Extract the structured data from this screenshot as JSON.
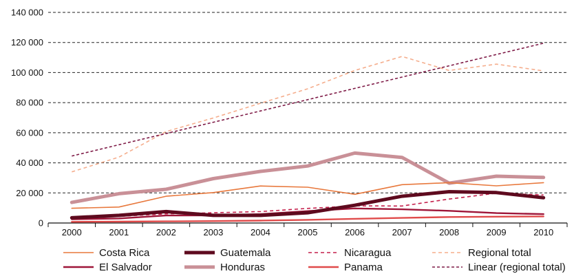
{
  "chart_data": {
    "type": "line",
    "x": [
      "2000",
      "2001",
      "2002",
      "2003",
      "2004",
      "2005",
      "2006",
      "2007",
      "2008",
      "2009",
      "2010"
    ],
    "y_ticks": [
      "0",
      "20 000",
      "40 000",
      "60 000",
      "80 000",
      "100 000",
      "120 000",
      "140 000"
    ],
    "ylim": [
      0,
      140000
    ],
    "grid": "horizontal dashed",
    "legend_position": "bottom",
    "series": [
      {
        "name": "Costa Rica",
        "color": "#e8783c",
        "style": "solid",
        "weight": "thin",
        "values": [
          9800,
          10600,
          17800,
          20200,
          24600,
          23800,
          19100,
          25500,
          26800,
          24700,
          26800
        ]
      },
      {
        "name": "Guatemala",
        "color": "#5e0a1e",
        "style": "solid",
        "weight": "thick",
        "values": [
          3500,
          5100,
          7600,
          5100,
          5100,
          6800,
          11800,
          17800,
          20800,
          20200,
          16800
        ]
      },
      {
        "name": "Nicaragua",
        "color": "#c41e4a",
        "style": "dashed",
        "weight": "thin",
        "values": [
          4100,
          4400,
          6100,
          6800,
          7600,
          9700,
          11400,
          11300,
          15900,
          19800,
          18600
        ]
      },
      {
        "name": "Regional total",
        "color": "#f5ad8c",
        "style": "dashed",
        "weight": "thin",
        "values": [
          34000,
          43800,
          60800,
          69800,
          79600,
          89200,
          101400,
          110700,
          101400,
          105600,
          101100
        ]
      },
      {
        "name": "El Salvador",
        "color": "#9e1538",
        "style": "solid",
        "weight": "medium",
        "values": [
          2500,
          3000,
          5000,
          5100,
          5900,
          7900,
          9700,
          9100,
          8100,
          6600,
          5900
        ]
      },
      {
        "name": "Honduras",
        "color": "#c99097",
        "style": "solid",
        "weight": "thick",
        "values": [
          13700,
          19500,
          22400,
          29500,
          34300,
          37900,
          46500,
          43600,
          26500,
          31100,
          30300
        ]
      },
      {
        "name": "Panama",
        "color": "#e04a4a",
        "style": "solid",
        "weight": "medium",
        "values": [
          800,
          900,
          1100,
          1300,
          1600,
          2100,
          2800,
          3400,
          4000,
          4200,
          4400
        ]
      },
      {
        "name": "Linear (regional total)",
        "color": "#7e1a46",
        "style": "dotted",
        "weight": "thin",
        "values": [
          44500,
          52000,
          59500,
          67000,
          74500,
          82000,
          89500,
          97000,
          104500,
          112000,
          119500
        ]
      }
    ]
  }
}
